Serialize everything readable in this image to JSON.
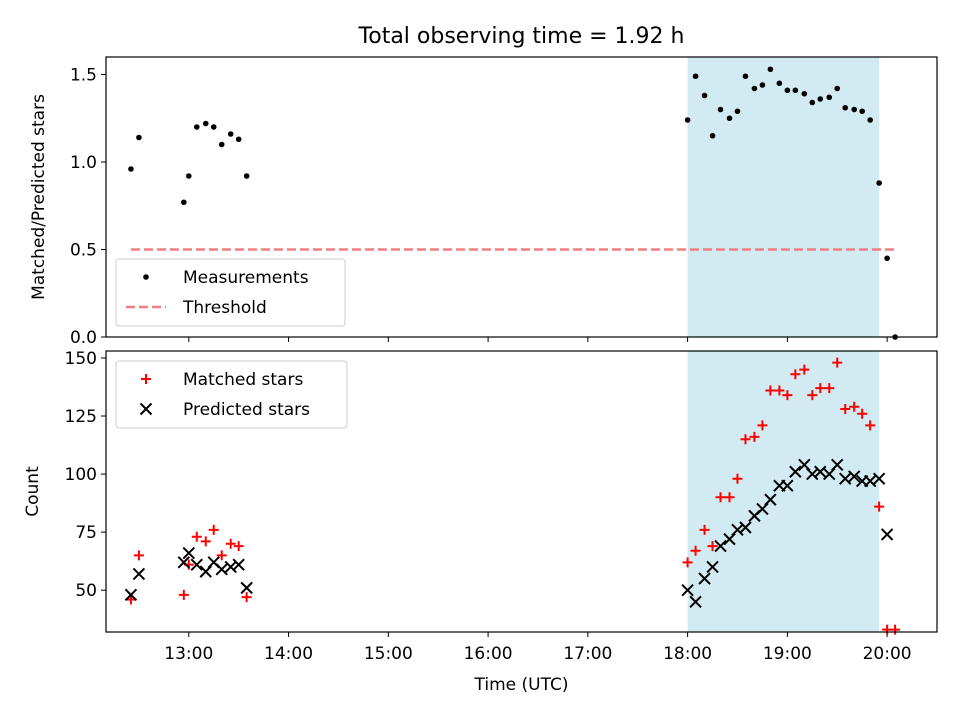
{
  "chart_data": [
    {
      "type": "scatter",
      "title": "Total observing time = 1.92 h",
      "xlabel": "",
      "ylabel": "Matched/Predicted stars",
      "xlim": [
        12.17,
        20.5
      ],
      "ylim": [
        0.0,
        1.6
      ],
      "yticks": [
        0.0,
        0.5,
        1.0,
        1.5
      ],
      "ytick_labels": [
        "0.0",
        "0.5",
        "1.0",
        "1.5"
      ],
      "shaded_span": [
        18.0,
        19.92
      ],
      "shade_color": "#add8e6",
      "legend_position": "lower left",
      "series": [
        {
          "name": "Measurements",
          "marker": "dot",
          "color": "#000000",
          "x": [
            12.42,
            12.5,
            12.95,
            13.0,
            13.08,
            13.17,
            13.25,
            13.33,
            13.42,
            13.5,
            13.58,
            18.0,
            18.08,
            18.17,
            18.25,
            18.33,
            18.42,
            18.5,
            18.58,
            18.67,
            18.75,
            18.83,
            18.92,
            19.0,
            19.08,
            19.17,
            19.25,
            19.33,
            19.42,
            19.5,
            19.58,
            19.67,
            19.75,
            19.83,
            19.92,
            20.0,
            20.08
          ],
          "y": [
            0.96,
            1.14,
            0.77,
            0.92,
            1.2,
            1.22,
            1.2,
            1.1,
            1.16,
            1.13,
            0.92,
            1.24,
            1.49,
            1.38,
            1.15,
            1.3,
            1.25,
            1.29,
            1.49,
            1.42,
            1.44,
            1.53,
            1.45,
            1.41,
            1.41,
            1.39,
            1.34,
            1.36,
            1.37,
            1.42,
            1.31,
            1.3,
            1.29,
            1.24,
            0.88,
            0.45,
            0.0
          ]
        },
        {
          "name": "Threshold",
          "style": "dashed",
          "color": "#f08080",
          "x": [
            12.42,
            20.08
          ],
          "y": [
            0.5,
            0.5
          ]
        }
      ]
    },
    {
      "type": "scatter",
      "title": "",
      "xlabel": "Time (UTC)",
      "ylabel": "Count",
      "xlim": [
        12.17,
        20.5
      ],
      "ylim": [
        32,
        153
      ],
      "yticks": [
        50,
        75,
        100,
        125,
        150
      ],
      "ytick_labels": [
        "50",
        "75",
        "100",
        "125",
        "150"
      ],
      "xticks": [
        13,
        14,
        15,
        16,
        17,
        18,
        19,
        20
      ],
      "xtick_labels": [
        "13:00",
        "14:00",
        "15:00",
        "16:00",
        "17:00",
        "18:00",
        "19:00",
        "20:00"
      ],
      "shaded_span": [
        18.0,
        19.92
      ],
      "shade_color": "#add8e6",
      "legend_position": "upper left",
      "series": [
        {
          "name": "Matched stars",
          "marker": "plus",
          "color": "#ff0000",
          "x": [
            12.42,
            12.5,
            12.95,
            13.0,
            13.08,
            13.17,
            13.25,
            13.33,
            13.42,
            13.5,
            13.58,
            18.0,
            18.08,
            18.17,
            18.25,
            18.33,
            18.42,
            18.5,
            18.58,
            18.67,
            18.75,
            18.83,
            18.92,
            19.0,
            19.08,
            19.17,
            19.25,
            19.33,
            19.42,
            19.5,
            19.58,
            19.67,
            19.75,
            19.83,
            19.92,
            20.0,
            20.08
          ],
          "y": [
            46,
            65,
            48,
            61,
            73,
            71,
            76,
            65,
            70,
            69,
            47,
            62,
            67,
            76,
            69,
            90,
            90,
            98,
            115,
            116,
            121,
            136,
            136,
            134,
            143,
            145,
            134,
            137,
            137,
            148,
            128,
            129,
            126,
            121,
            86,
            33,
            33
          ]
        },
        {
          "name": "Predicted stars",
          "marker": "x",
          "color": "#000000",
          "x": [
            12.42,
            12.5,
            12.95,
            13.0,
            13.08,
            13.17,
            13.25,
            13.33,
            13.42,
            13.5,
            13.58,
            18.0,
            18.08,
            18.17,
            18.25,
            18.33,
            18.42,
            18.5,
            18.58,
            18.67,
            18.75,
            18.83,
            18.92,
            19.0,
            19.08,
            19.17,
            19.25,
            19.33,
            19.42,
            19.5,
            19.58,
            19.67,
            19.75,
            19.83,
            19.92,
            20.0
          ],
          "y": [
            48,
            57,
            62,
            66,
            61,
            58,
            62,
            59,
            60,
            61,
            51,
            50,
            45,
            55,
            60,
            69,
            72,
            76,
            77,
            82,
            85,
            89,
            95,
            95,
            101,
            104,
            100,
            101,
            100,
            104,
            98,
            99,
            97,
            97,
            98,
            74
          ]
        }
      ]
    }
  ]
}
